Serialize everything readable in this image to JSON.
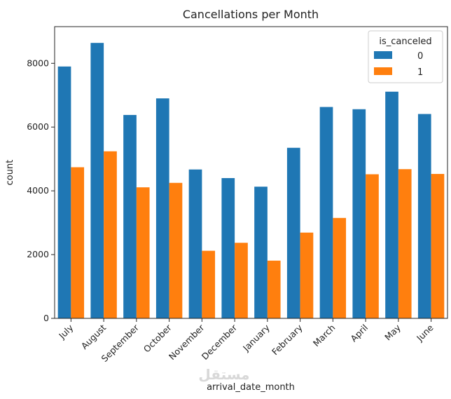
{
  "chart_data": {
    "type": "bar",
    "title": "Cancellations per Month",
    "xlabel": "arrival_date_month",
    "ylabel": "count",
    "ylim": [
      0,
      9150
    ],
    "yticks": [
      0,
      2000,
      4000,
      6000,
      8000
    ],
    "categories": [
      "July",
      "August",
      "September",
      "October",
      "November",
      "December",
      "January",
      "February",
      "March",
      "April",
      "May",
      "June"
    ],
    "legend_title": "is_canceled",
    "legend_position": "top-right",
    "series": [
      {
        "name": "0",
        "color": "#1f77b4",
        "values": [
          7900,
          8640,
          6380,
          6900,
          4670,
          4400,
          4130,
          5350,
          6630,
          6560,
          7110,
          6410
        ]
      },
      {
        "name": "1",
        "color": "#ff7f0e",
        "values": [
          4740,
          5240,
          4110,
          4250,
          2120,
          2370,
          1810,
          2690,
          3150,
          4520,
          4680,
          4530
        ]
      }
    ]
  },
  "watermark": "مستقل"
}
